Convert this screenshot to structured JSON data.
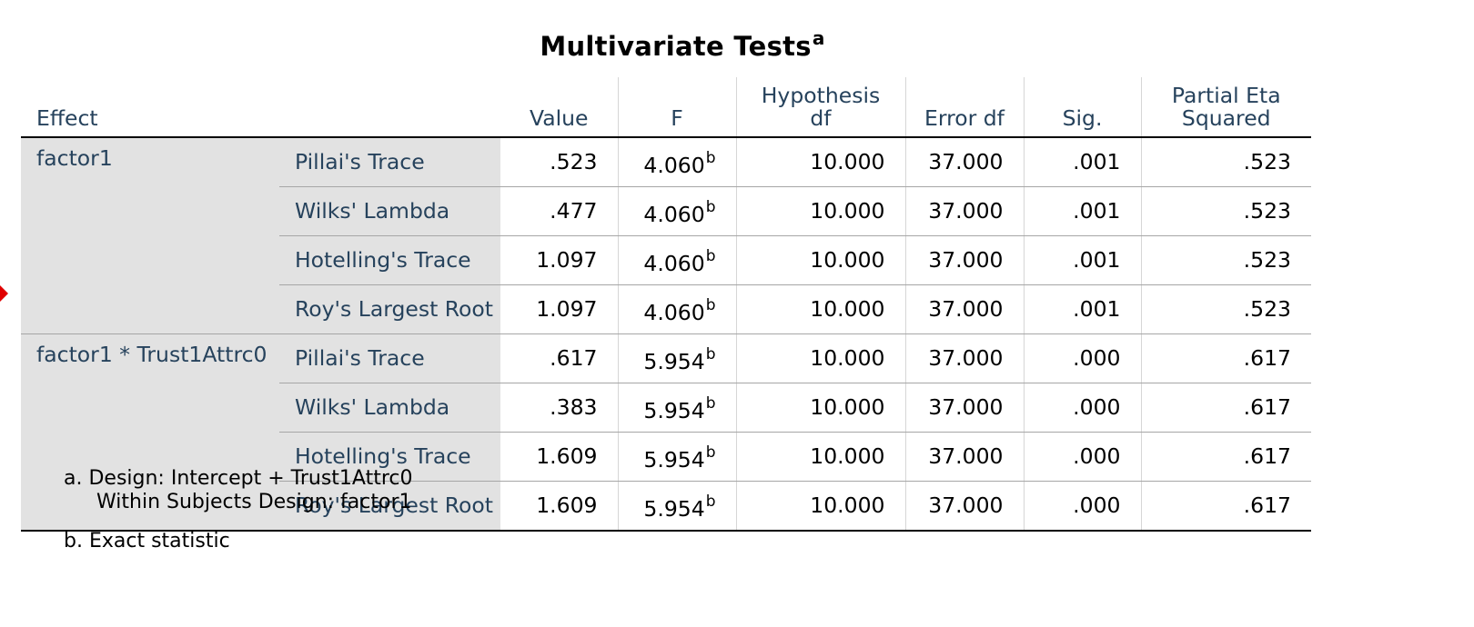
{
  "title": {
    "text": "Multivariate Tests",
    "footnote_mark": "a"
  },
  "headers": {
    "effect": "Effect",
    "value": "Value",
    "f": "F",
    "hyp_df_line1": "Hypothesis",
    "hyp_df_line2": "df",
    "error_df": "Error df",
    "sig": "Sig.",
    "pes_line1": "Partial Eta",
    "pes_line2": "Squared"
  },
  "groups": [
    {
      "effect": "factor1",
      "rows": [
        {
          "statistic": "Pillai's Trace",
          "value": ".523",
          "f": "4.060",
          "f_mark": "b",
          "hyp_df": "10.000",
          "error_df": "37.000",
          "sig": ".001",
          "pes": ".523"
        },
        {
          "statistic": "Wilks' Lambda",
          "value": ".477",
          "f": "4.060",
          "f_mark": "b",
          "hyp_df": "10.000",
          "error_df": "37.000",
          "sig": ".001",
          "pes": ".523"
        },
        {
          "statistic": "Hotelling's Trace",
          "value": "1.097",
          "f": "4.060",
          "f_mark": "b",
          "hyp_df": "10.000",
          "error_df": "37.000",
          "sig": ".001",
          "pes": ".523"
        },
        {
          "statistic": "Roy's Largest Root",
          "value": "1.097",
          "f": "4.060",
          "f_mark": "b",
          "hyp_df": "10.000",
          "error_df": "37.000",
          "sig": ".001",
          "pes": ".523"
        }
      ]
    },
    {
      "effect": "factor1 * Trust1Attrc0",
      "rows": [
        {
          "statistic": "Pillai's Trace",
          "value": ".617",
          "f": "5.954",
          "f_mark": "b",
          "hyp_df": "10.000",
          "error_df": "37.000",
          "sig": ".000",
          "pes": ".617"
        },
        {
          "statistic": "Wilks' Lambda",
          "value": ".383",
          "f": "5.954",
          "f_mark": "b",
          "hyp_df": "10.000",
          "error_df": "37.000",
          "sig": ".000",
          "pes": ".617"
        },
        {
          "statistic": "Hotelling's Trace",
          "value": "1.609",
          "f": "5.954",
          "f_mark": "b",
          "hyp_df": "10.000",
          "error_df": "37.000",
          "sig": ".000",
          "pes": ".617"
        },
        {
          "statistic": "Roy's Largest Root",
          "value": "1.609",
          "f": "5.954",
          "f_mark": "b",
          "hyp_df": "10.000",
          "error_df": "37.000",
          "sig": ".000",
          "pes": ".617"
        }
      ]
    }
  ],
  "notes": {
    "a_line1": "a. Design: Intercept + Trust1Attrc0",
    "a_line2": "Within Subjects Design: factor1",
    "b": "b. Exact statistic"
  },
  "colors": {
    "label_text": "#26425c",
    "label_bg": "#e2e2e2",
    "marker": "#e00000"
  }
}
